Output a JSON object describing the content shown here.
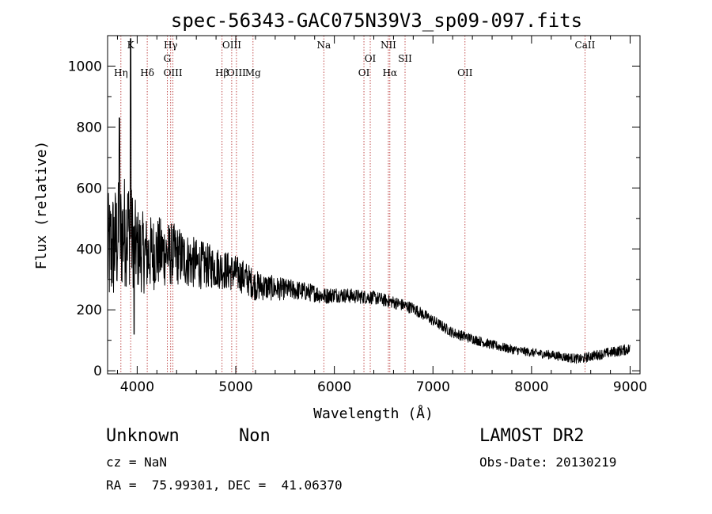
{
  "chart_data": {
    "type": "line",
    "title": "spec-56343-GAC075N39V3_sp09-097.fits",
    "xlabel": "Wavelength (Å)",
    "ylabel": "Flux (relative)",
    "xlim": [
      3700,
      9100
    ],
    "ylim": [
      -10,
      1100
    ],
    "x_ticks": [
      4000,
      5000,
      6000,
      7000,
      8000,
      9000
    ],
    "y_ticks": [
      0,
      200,
      400,
      600,
      800,
      1000
    ],
    "grid": false,
    "line_color": "#000000",
    "marker_color": "#b22222",
    "spectral_lines": [
      {
        "label": "Hη",
        "wavelength": 3835,
        "row": 2
      },
      {
        "label": "K",
        "wavelength": 3934,
        "row": 0
      },
      {
        "label": "Hδ",
        "wavelength": 4102,
        "row": 3
      },
      {
        "label": "Hγ",
        "wavelength": 4340,
        "row": 0
      },
      {
        "label": "G",
        "wavelength": 4305,
        "row": 1
      },
      {
        "label": "OIII",
        "wavelength": 4363,
        "row": 3
      },
      {
        "label": "Hβ",
        "wavelength": 4861,
        "row": 2
      },
      {
        "label": "OIII",
        "wavelength": 4959,
        "row": 0
      },
      {
        "label": "OIII",
        "wavelength": 5007,
        "row": 3
      },
      {
        "label": "Mg",
        "wavelength": 5175,
        "row": 2
      },
      {
        "label": "Na",
        "wavelength": 5893,
        "row": 0
      },
      {
        "label": "OI",
        "wavelength": 6300,
        "row": 3
      },
      {
        "label": "OI",
        "wavelength": 6364,
        "row": 1
      },
      {
        "label": "NII",
        "wavelength": 6548,
        "row": 0
      },
      {
        "label": "Hα",
        "wavelength": 6563,
        "row": 3
      },
      {
        "label": "SII",
        "wavelength": 6717,
        "row": 1
      },
      {
        "label": "OII",
        "wavelength": 7325,
        "row": 3
      },
      {
        "label": "CaII",
        "wavelength": 8542,
        "row": 0
      }
    ],
    "continuum_anchors": [
      [
        3700,
        380
      ],
      [
        3800,
        430
      ],
      [
        3900,
        470
      ],
      [
        4000,
        400
      ],
      [
        4100,
        380
      ],
      [
        4200,
        390
      ],
      [
        4300,
        385
      ],
      [
        4400,
        380
      ],
      [
        4500,
        365
      ],
      [
        4600,
        350
      ],
      [
        4700,
        345
      ],
      [
        4800,
        340
      ],
      [
        4900,
        330
      ],
      [
        5000,
        320
      ],
      [
        5100,
        305
      ],
      [
        5200,
        280
      ],
      [
        5400,
        270
      ],
      [
        5600,
        265
      ],
      [
        5800,
        255
      ],
      [
        5900,
        245
      ],
      [
        6000,
        250
      ],
      [
        6200,
        245
      ],
      [
        6400,
        240
      ],
      [
        6600,
        225
      ],
      [
        6800,
        205
      ],
      [
        7000,
        165
      ],
      [
        7200,
        125
      ],
      [
        7400,
        105
      ],
      [
        7600,
        85
      ],
      [
        7800,
        70
      ],
      [
        8000,
        60
      ],
      [
        8200,
        52
      ],
      [
        8400,
        42
      ],
      [
        8500,
        38
      ],
      [
        8600,
        48
      ],
      [
        8800,
        60
      ],
      [
        9000,
        72
      ]
    ],
    "noise_anchors": [
      [
        3700,
        200
      ],
      [
        3900,
        190
      ],
      [
        4000,
        140
      ],
      [
        4200,
        120
      ],
      [
        4400,
        100
      ],
      [
        4700,
        75
      ],
      [
        5000,
        60
      ],
      [
        5500,
        35
      ],
      [
        6000,
        25
      ],
      [
        7000,
        18
      ],
      [
        8000,
        14
      ],
      [
        9000,
        18
      ]
    ]
  },
  "info": {
    "object_class": "Unknown",
    "object_subclass": "Non",
    "survey": "LAMOST DR2",
    "cz": "cz = NaN",
    "obs_date": "Obs-Date: 20130219",
    "coords": "RA =  75.99301, DEC =  41.06370"
  }
}
